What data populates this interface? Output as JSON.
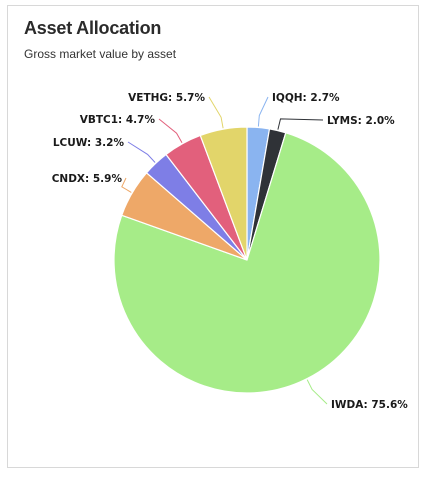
{
  "header": {
    "title": "Asset Allocation",
    "subtitle": "Gross market value by asset"
  },
  "chart_data": {
    "type": "pie",
    "title": "Asset Allocation",
    "subtitle": "Gross market value by asset",
    "start_angle_deg": 0,
    "direction": "clockwise",
    "slices": [
      {
        "label": "IQQH",
        "value": 2.7,
        "display": "IQQH: 2.7%",
        "color": "#8ab4f0"
      },
      {
        "label": "LYMS",
        "value": 2.0,
        "display": "LYMS: 2.0%",
        "color": "#2f3237"
      },
      {
        "label": "IWDA",
        "value": 75.6,
        "display": "IWDA: 75.6%",
        "color": "#a6ec88"
      },
      {
        "label": "CNDX",
        "value": 5.9,
        "display": "CNDX: 5.9%",
        "color": "#eea868"
      },
      {
        "label": "LCUW",
        "value": 3.2,
        "display": "LCUW: 3.2%",
        "color": "#7e7ee6"
      },
      {
        "label": "VBTC1",
        "value": 4.7,
        "display": "VBTC1: 4.7%",
        "color": "#e2607c"
      },
      {
        "label": "VETHG",
        "value": 5.7,
        "display": "VETHG: 5.7%",
        "color": "#e2d56a"
      }
    ]
  }
}
